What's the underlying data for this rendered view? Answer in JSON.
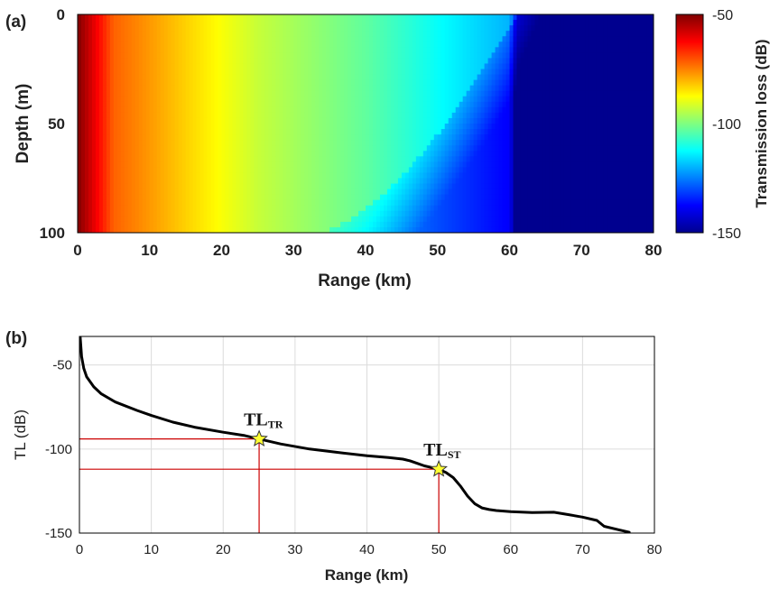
{
  "chart_data": [
    {
      "panel": "a",
      "panel_label": "(a)",
      "type": "heatmap",
      "xlabel": "Range (km)",
      "ylabel": "Depth (m)",
      "xlim": [
        0,
        80
      ],
      "ylim": [
        0,
        100
      ],
      "y_inverted": true,
      "x_ticks": [
        0,
        10,
        20,
        30,
        40,
        50,
        60,
        70,
        80
      ],
      "y_ticks": [
        0,
        50,
        100
      ],
      "colorbar": {
        "label": "Transmission loss (dB)",
        "range": [
          -150,
          -50
        ],
        "ticks": [
          -50,
          -100,
          -150
        ],
        "colormap": "jet",
        "colormap_stops": [
          "#00008f",
          "#0000ff",
          "#00ffff",
          "#ffff00",
          "#ff0000",
          "#800000"
        ]
      },
      "field_description_tl_surface_dB": [
        {
          "range_km": 0,
          "tl": -50
        },
        {
          "range_km": 5,
          "tl": -72
        },
        {
          "range_km": 15,
          "tl": -83
        },
        {
          "range_km": 25,
          "tl": -93
        },
        {
          "range_km": 40,
          "tl": -103
        },
        {
          "range_km": 50,
          "tl": -112
        },
        {
          "range_km": 60,
          "tl": -120
        },
        {
          "range_km": 61,
          "tl": -136
        },
        {
          "range_km": 80,
          "tl": -142
        }
      ]
    },
    {
      "panel": "b",
      "panel_label": "(b)",
      "type": "line",
      "xlabel": "Range (km)",
      "ylabel": "TL (dB)",
      "xlim": [
        0,
        80
      ],
      "ylim": [
        -150,
        -33
      ],
      "x_ticks": [
        0,
        10,
        20,
        30,
        40,
        50,
        60,
        70,
        80
      ],
      "y_ticks": [
        -50,
        -100,
        -150
      ],
      "grid": true,
      "series": [
        {
          "name": "TL",
          "color": "#000000",
          "x": [
            0.1,
            0.3,
            0.6,
            1,
            2,
            3,
            5,
            8,
            10,
            13,
            16,
            20,
            23,
            25,
            28,
            32,
            36,
            40,
            43,
            45,
            46,
            47,
            48,
            49,
            50,
            51,
            52,
            53,
            54,
            55,
            56,
            57,
            58,
            60,
            63,
            66,
            68,
            70,
            72,
            73,
            75,
            76.5
          ],
          "values": [
            -33,
            -45,
            -52,
            -57,
            -63,
            -67,
            -72,
            -77,
            -80,
            -84,
            -87,
            -90,
            -92,
            -94,
            -97,
            -100,
            -102,
            -104,
            -105,
            -106,
            -107,
            -108.5,
            -110,
            -111,
            -112,
            -114,
            -117,
            -122,
            -128,
            -132.5,
            -135,
            -136,
            -136.6,
            -137.2,
            -137.8,
            -137.6,
            -139,
            -140.5,
            -142.5,
            -146,
            -148,
            -149.5
          ]
        }
      ],
      "annotations": [
        {
          "label_main": "TL",
          "label_sub": "TR",
          "x": 25,
          "y": -94,
          "marker": "star",
          "marker_color": "#ffff33",
          "guide_color": "#cc0000"
        },
        {
          "label_main": "TL",
          "label_sub": "ST",
          "x": 50,
          "y": -112,
          "marker": "star",
          "marker_color": "#ffff33",
          "guide_color": "#cc0000"
        }
      ]
    }
  ]
}
